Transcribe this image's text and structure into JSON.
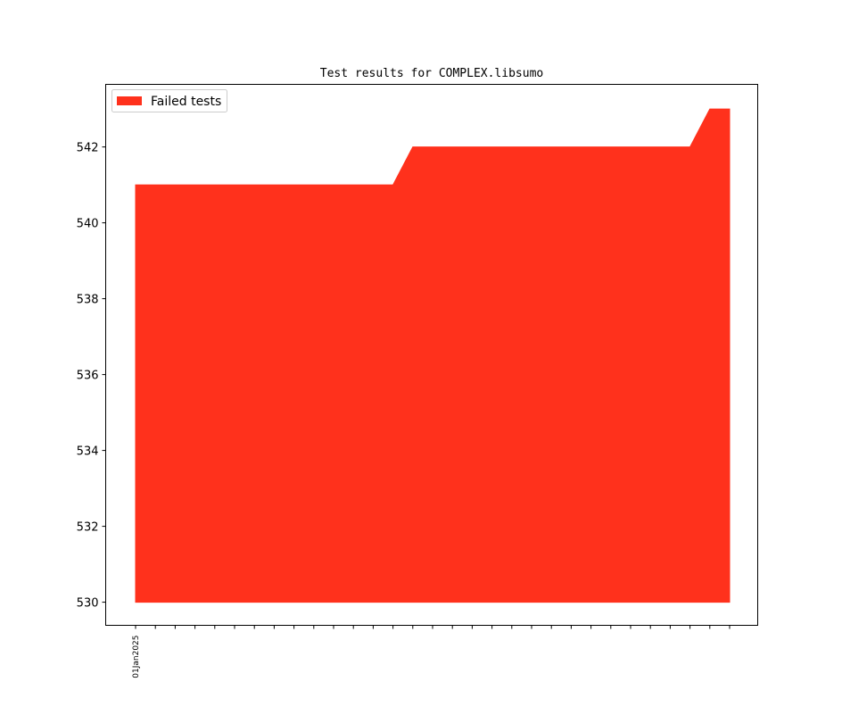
{
  "chart_data": {
    "type": "area",
    "title": "Test results for COMPLEX.libsumo",
    "xlabel": "",
    "ylabel": "",
    "x": [
      "2025-01-01",
      "2025-01-02",
      "2025-01-03",
      "2025-01-04",
      "2025-01-05",
      "2025-01-06",
      "2025-01-07",
      "2025-01-08",
      "2025-01-09",
      "2025-01-10",
      "2025-01-11",
      "2025-01-12",
      "2025-01-13",
      "2025-01-14",
      "2025-01-15",
      "2025-01-16",
      "2025-01-17",
      "2025-01-18",
      "2025-01-19",
      "2025-01-20",
      "2025-01-21",
      "2025-01-22",
      "2025-01-23",
      "2025-01-24",
      "2025-01-25",
      "2025-01-26",
      "2025-01-27",
      "2025-01-28",
      "2025-01-29",
      "2025-01-30",
      "2025-01-31"
    ],
    "x_tick_labels": [
      "01Jan2025"
    ],
    "series": [
      {
        "name": "Failed tests",
        "color": "#ff311c",
        "baseline": 530,
        "values": [
          541,
          541,
          541,
          541,
          541,
          541,
          541,
          541,
          541,
          541,
          541,
          541,
          541,
          541,
          542,
          542,
          542,
          542,
          542,
          542,
          542,
          542,
          542,
          542,
          542,
          542,
          542,
          542,
          542,
          543,
          543
        ]
      }
    ],
    "ylim": [
      529.39,
      543.65
    ],
    "y_ticks": [
      "530",
      "532",
      "534",
      "536",
      "538",
      "540",
      "542"
    ],
    "grid": false,
    "legend": "upper-left"
  }
}
